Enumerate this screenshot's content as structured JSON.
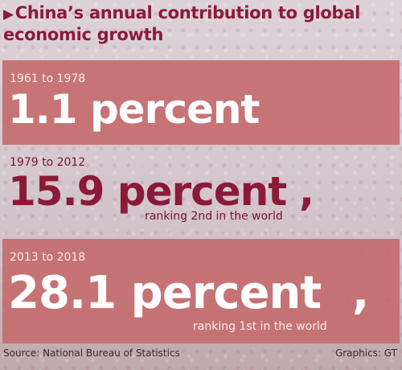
{
  "title": {
    "arrow": "▶",
    "line1": "China’s annual contribution to global",
    "line2": "economic growth"
  },
  "items": [
    {
      "period": "1961 to 1978",
      "value": "1.1 percent",
      "rank": ""
    },
    {
      "period": "1979 to 2012",
      "value": "15.9 percent",
      "rank": "ranking 2nd in the world"
    },
    {
      "period": "2013 to 2018",
      "value": "28.1 percent",
      "rank": "ranking 1st in the world"
    }
  ],
  "footer": {
    "source": "Source: National Bureau of Statistics",
    "credit": "Graphics: GT"
  },
  "colors": {
    "accent": "#8b1a3a",
    "band": "#c46d6e",
    "background": "#d6c9d0"
  }
}
